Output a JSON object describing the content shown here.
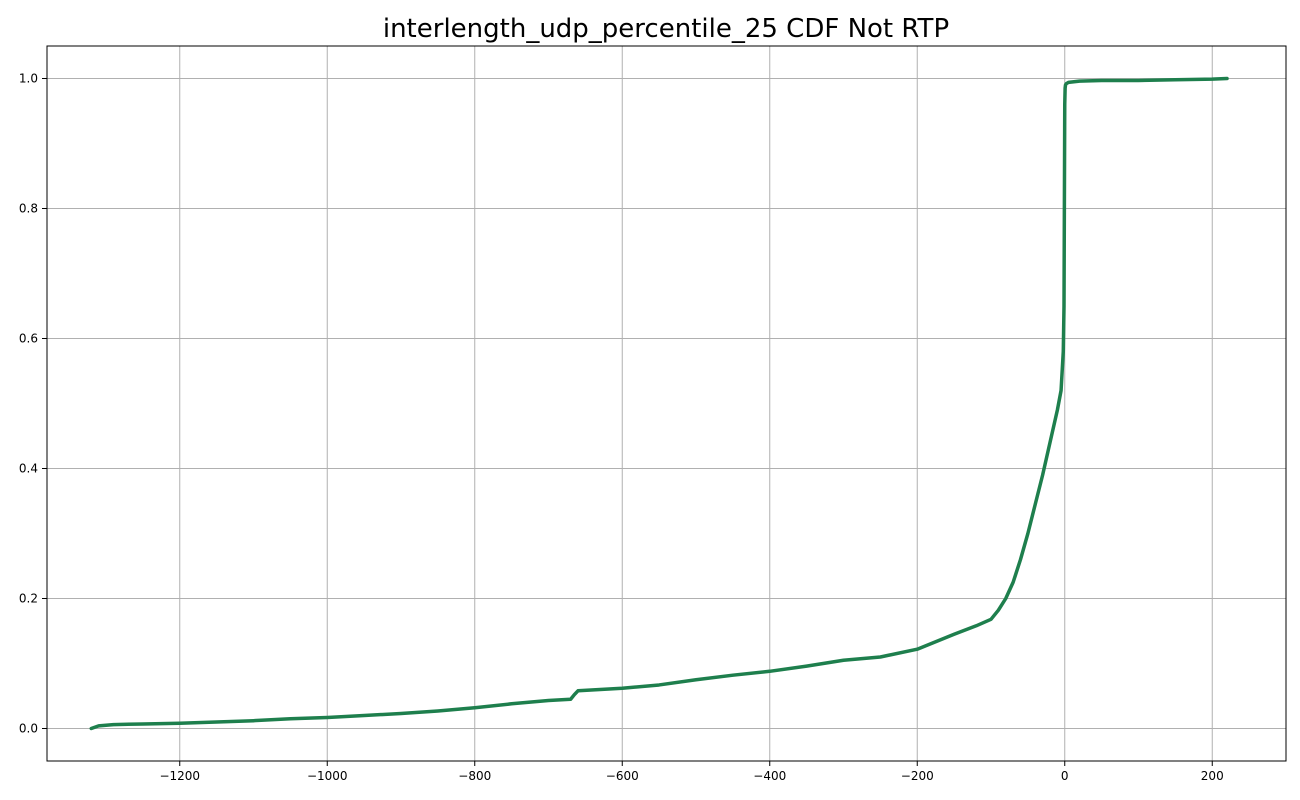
{
  "chart_data": {
    "type": "line",
    "title": "interlength_udp_percentile_25 CDF Not RTP",
    "xlabel": "",
    "ylabel": "",
    "xlim": [
      -1380,
      300
    ],
    "ylim": [
      -0.05,
      1.05
    ],
    "grid": true,
    "xticks": [
      -1200,
      -1000,
      -800,
      -600,
      -400,
      -200,
      0,
      200
    ],
    "xtick_labels": [
      "−1200",
      "−1000",
      "−800",
      "−600",
      "−400",
      "−200",
      "0",
      "200"
    ],
    "yticks": [
      0.0,
      0.2,
      0.4,
      0.6,
      0.8,
      1.0
    ],
    "ytick_labels": [
      "0.0",
      "0.2",
      "0.4",
      "0.6",
      "0.8",
      "1.0"
    ],
    "series": [
      {
        "color": "#1e7f4d",
        "x": [
          -1320,
          -1310,
          -1290,
          -1250,
          -1200,
          -1150,
          -1100,
          -1050,
          -1000,
          -950,
          -900,
          -850,
          -800,
          -750,
          -700,
          -670,
          -665,
          -660,
          -600,
          -550,
          -500,
          -450,
          -400,
          -350,
          -300,
          -250,
          -200,
          -150,
          -120,
          -100,
          -90,
          -80,
          -70,
          -60,
          -50,
          -40,
          -30,
          -20,
          -10,
          -5,
          -2,
          -1,
          0,
          0.5,
          1,
          2,
          5,
          20,
          50,
          100,
          150,
          200,
          220
        ],
        "y": [
          0.0,
          0.004,
          0.006,
          0.007,
          0.008,
          0.01,
          0.012,
          0.015,
          0.017,
          0.02,
          0.023,
          0.027,
          0.032,
          0.038,
          0.043,
          0.045,
          0.052,
          0.058,
          0.062,
          0.067,
          0.075,
          0.082,
          0.088,
          0.096,
          0.105,
          0.11,
          0.122,
          0.145,
          0.158,
          0.168,
          0.182,
          0.2,
          0.225,
          0.26,
          0.3,
          0.345,
          0.39,
          0.44,
          0.49,
          0.52,
          0.58,
          0.65,
          0.96,
          0.985,
          0.99,
          0.992,
          0.994,
          0.996,
          0.997,
          0.997,
          0.998,
          0.999,
          1.0
        ]
      }
    ]
  }
}
